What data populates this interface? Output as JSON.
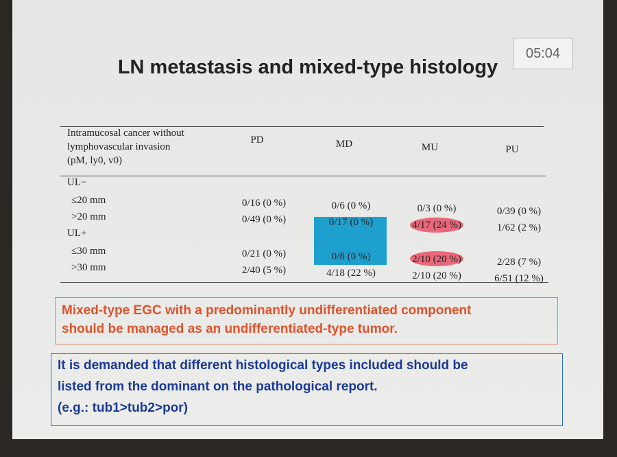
{
  "timer": "05:04",
  "title": "LN metastasis and mixed-type histology",
  "table": {
    "header": {
      "first": [
        "Intramucosal cancer without",
        "lymphovascular invasion",
        "(pM, ly0, v0)"
      ],
      "columns": [
        "PD",
        "MD",
        "MU",
        "PU"
      ]
    },
    "groups": [
      {
        "label": "UL−",
        "rows": [
          {
            "label": "≤20 mm",
            "cells": [
              "0/16 (0 %)",
              "0/6 (0 %)",
              "0/3 (0 %)",
              "0/39 (0 %)"
            ]
          },
          {
            "label": ">20 mm",
            "cells": [
              "0/49 (0 %)",
              "0/17 (0 %)",
              "4/17 (24 %)",
              "1/62 (2 %)"
            ]
          }
        ]
      },
      {
        "label": "UL+",
        "rows": [
          {
            "label": "≤30 mm",
            "cells": [
              "0/21 (0 %)",
              "0/8 (0 %)",
              "2/10 (20 %)",
              "2/28 (7 %)"
            ]
          },
          {
            "label": ">30 mm",
            "cells": [
              "2/40 (5 %)",
              "4/18 (22 %)",
              "2/10 (20 %)",
              "6/51 (12 %)"
            ]
          }
        ]
      }
    ]
  },
  "note_1": [
    "Mixed-type EGC with a predominantly undifferentiated component",
    "should be managed as an undifferentiated-type tumor."
  ],
  "note_2": [
    "It is demanded that different histological types included should be",
    "listed from the dominant on the pathological report.",
    "(e.g.: tub1>tub2>por)"
  ]
}
